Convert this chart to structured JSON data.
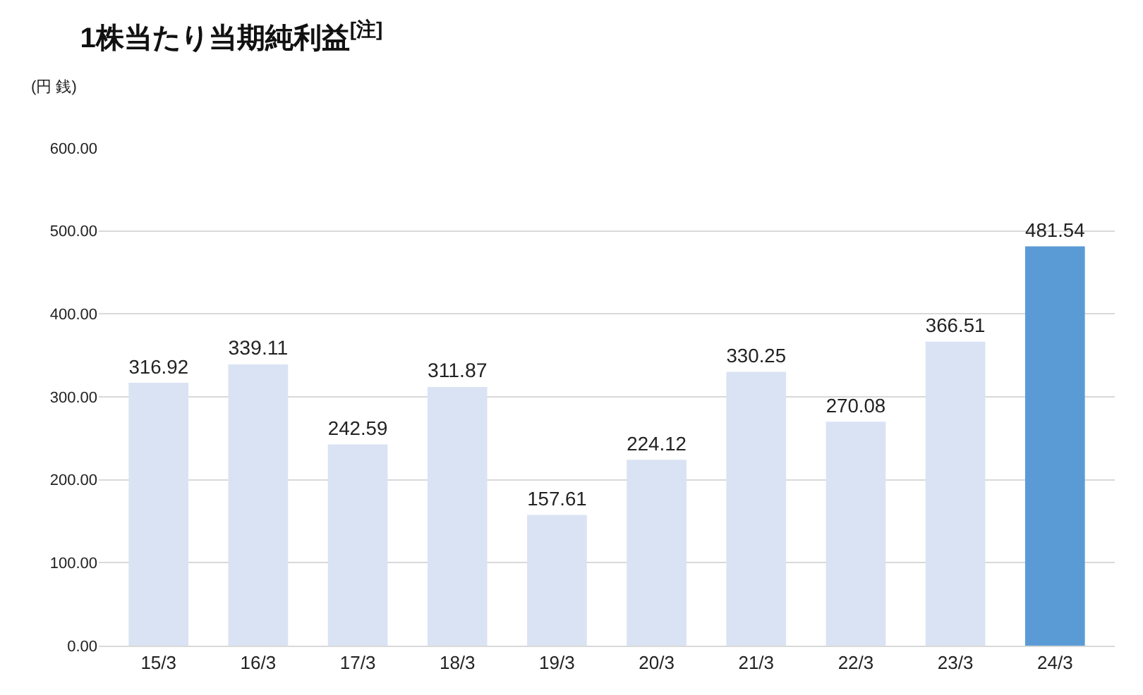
{
  "chart_data": {
    "type": "bar",
    "title": "1株当たり当期純利益$^{[注]}$",
    "ylabel": "(円 銭)",
    "categories": [
      "15/3",
      "16/3",
      "17/3",
      "18/3",
      "19/3",
      "20/3",
      "21/3",
      "22/3",
      "23/3",
      "24/3"
    ],
    "values": [
      316.92,
      339.11,
      242.59,
      311.87,
      157.61,
      224.12,
      330.25,
      270.08,
      366.51,
      481.54
    ],
    "colors": [
      "#dae3f3",
      "#dae3f3",
      "#dae3f3",
      "#dae3f3",
      "#dae3f3",
      "#dae3f3",
      "#dae3f3",
      "#dae3f3",
      "#dae3f3",
      "#5b9bd5"
    ],
    "ylim": [
      0,
      600
    ],
    "yticks": [
      {
        "value": 0,
        "label": "0.00"
      },
      {
        "value": 100,
        "label": "100.00"
      },
      {
        "value": 200,
        "label": "200.00"
      },
      {
        "value": 300,
        "label": "300.00"
      },
      {
        "value": 400,
        "label": "400.00"
      },
      {
        "value": 500,
        "label": "500.00"
      },
      {
        "value": 600,
        "label": "600.00"
      }
    ],
    "grid": "y",
    "data_labels": true,
    "legend": false
  }
}
